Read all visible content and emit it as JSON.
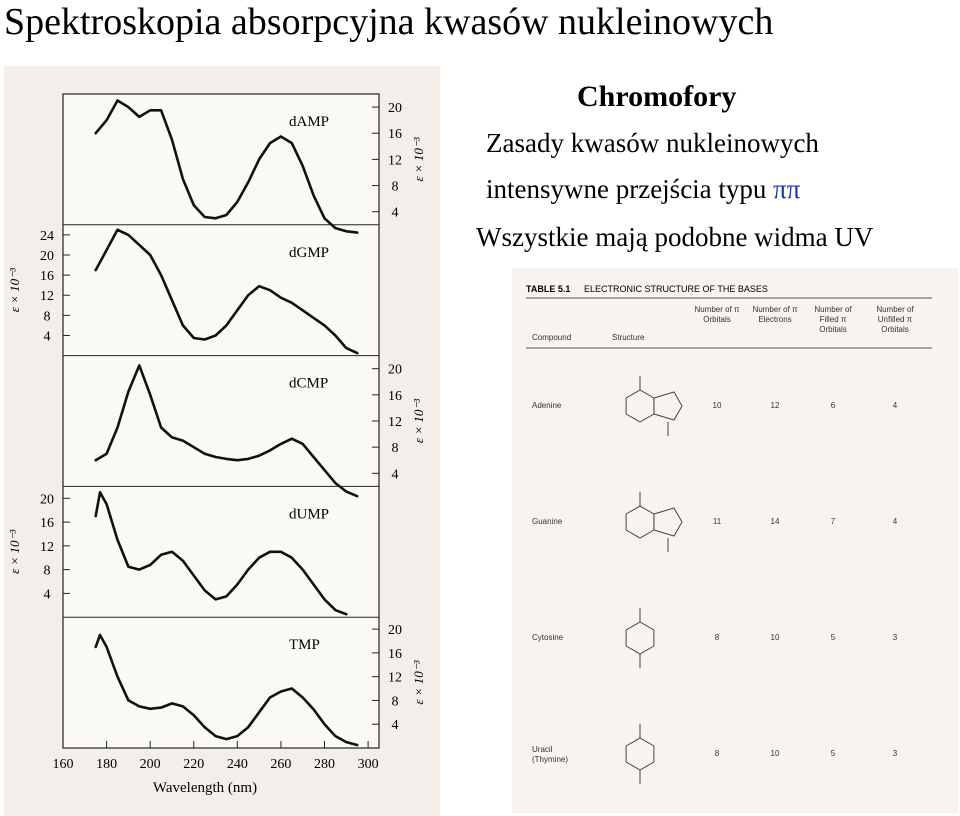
{
  "slide": {
    "title": "Spektroskopia absorpcyjna kwasów nukleinowych",
    "heading": "Chromofory",
    "line1": "Zasady kwasów nukleinowych",
    "line2_text": "intensywne przejścia typu ",
    "line2_symbol": "ππ",
    "line3": "Wszystkie mają podobne widma UV"
  },
  "chart_data": [
    {
      "type": "line",
      "title": "dAMP",
      "xlabel": "Wavelength (nm)",
      "ylabel": "ε × 10⁻³",
      "y_axis_side": "right",
      "yticks": [
        "20",
        "16",
        "12",
        "8",
        "4"
      ],
      "ylim": [
        2,
        22
      ],
      "x": [
        175,
        180,
        185,
        190,
        195,
        200,
        205,
        210,
        215,
        220,
        225,
        230,
        235,
        240,
        245,
        250,
        255,
        260,
        265,
        270,
        275,
        280,
        285,
        290,
        295
      ],
      "values": [
        16,
        18,
        21,
        20,
        18.5,
        19.5,
        19.5,
        15,
        9,
        5,
        3.2,
        3,
        3.5,
        5.5,
        8.5,
        12,
        14.5,
        15.5,
        14.5,
        11,
        6.5,
        3,
        1.5,
        1,
        0.8
      ]
    },
    {
      "type": "line",
      "title": "dGMP",
      "xlabel": "Wavelength (nm)",
      "ylabel": "ε × 10⁻³",
      "y_axis_side": "left",
      "yticks": [
        "24",
        "20",
        "16",
        "12",
        "8",
        "4"
      ],
      "ylim": [
        0,
        26
      ],
      "x": [
        175,
        180,
        185,
        190,
        195,
        200,
        205,
        210,
        215,
        220,
        225,
        230,
        235,
        240,
        245,
        250,
        255,
        260,
        265,
        270,
        275,
        280,
        285,
        290,
        295
      ],
      "values": [
        17,
        21,
        25,
        24,
        22,
        20,
        16,
        11,
        6,
        3.5,
        3.2,
        4,
        6,
        9,
        12,
        13.8,
        13,
        11.5,
        10.5,
        9,
        7.5,
        6,
        4,
        1.5,
        0.5
      ]
    },
    {
      "type": "line",
      "title": "dCMP",
      "xlabel": "Wavelength (nm)",
      "ylabel": "ε × 10⁻³",
      "y_axis_side": "right",
      "yticks": [
        "20",
        "16",
        "12",
        "8",
        "4"
      ],
      "ylim": [
        2,
        22
      ],
      "x": [
        175,
        180,
        185,
        190,
        195,
        200,
        205,
        210,
        215,
        220,
        225,
        230,
        235,
        240,
        245,
        250,
        255,
        260,
        265,
        270,
        275,
        280,
        285,
        290,
        295
      ],
      "values": [
        6,
        7,
        11,
        16.5,
        20.5,
        16,
        11,
        9.5,
        9,
        8,
        7,
        6.5,
        6.2,
        6,
        6.2,
        6.7,
        7.5,
        8.5,
        9.3,
        8.5,
        6.5,
        4.5,
        2.5,
        1.2,
        0.5
      ]
    },
    {
      "type": "line",
      "title": "dUMP",
      "xlabel": "Wavelength (nm)",
      "ylabel": "ε × 10⁻³",
      "y_axis_side": "left",
      "yticks": [
        "20",
        "16",
        "12",
        "8",
        "4"
      ],
      "ylim": [
        0,
        22
      ],
      "x": [
        175,
        177,
        180,
        185,
        190,
        195,
        200,
        205,
        210,
        215,
        220,
        225,
        230,
        235,
        240,
        245,
        250,
        255,
        260,
        265,
        270,
        275,
        280,
        285,
        290
      ],
      "values": [
        17,
        21,
        19,
        13,
        8.5,
        8,
        8.8,
        10.5,
        11,
        9.5,
        7,
        4.5,
        3,
        3.5,
        5.5,
        8,
        10,
        11,
        11,
        10,
        8,
        5.5,
        3,
        1.2,
        0.5
      ]
    },
    {
      "type": "line",
      "title": "TMP",
      "xlabel": "Wavelength (nm)",
      "ylabel": "ε × 10⁻³",
      "y_axis_side": "right",
      "yticks": [
        "20",
        "16",
        "12",
        "8",
        "4"
      ],
      "ylim": [
        0,
        22
      ],
      "x": [
        175,
        177,
        180,
        185,
        190,
        195,
        200,
        205,
        210,
        215,
        220,
        225,
        230,
        235,
        240,
        245,
        250,
        255,
        260,
        265,
        270,
        275,
        280,
        285,
        290,
        295
      ],
      "values": [
        17,
        19,
        17,
        12,
        8,
        7,
        6.6,
        6.8,
        7.5,
        7,
        5.5,
        3.5,
        2,
        1.5,
        2,
        3.5,
        6,
        8.5,
        9.5,
        10,
        8.5,
        6.5,
        4,
        2,
        1,
        0.5
      ]
    }
  ],
  "x_axis": {
    "ticks": [
      "160",
      "180",
      "200",
      "220",
      "240",
      "260",
      "280",
      "300"
    ],
    "tick_values": [
      160,
      180,
      200,
      220,
      240,
      260,
      280,
      300
    ],
    "label": "Wavelength (nm)",
    "range": [
      160,
      305
    ]
  },
  "table": {
    "title": "TABLE 5.1",
    "caption": "ELECTRONIC STRUCTURE OF THE BASES",
    "headers": [
      "Compound",
      "Structure",
      "Number of π Orbitals",
      "Number of π Electrons",
      "Number of Filled π Orbitals",
      "Number of Unfilled π Orbitals"
    ],
    "rows": [
      {
        "compound": "Adenine",
        "values": [
          "10",
          "12",
          "6",
          "4"
        ]
      },
      {
        "compound": "Guanine",
        "values": [
          "11",
          "14",
          "7",
          "4"
        ]
      },
      {
        "compound": "Cytosine",
        "values": [
          "8",
          "10",
          "5",
          "3"
        ]
      },
      {
        "compound": "Uracil (Thymine)",
        "values": [
          "8",
          "10",
          "5",
          "3"
        ]
      }
    ]
  }
}
